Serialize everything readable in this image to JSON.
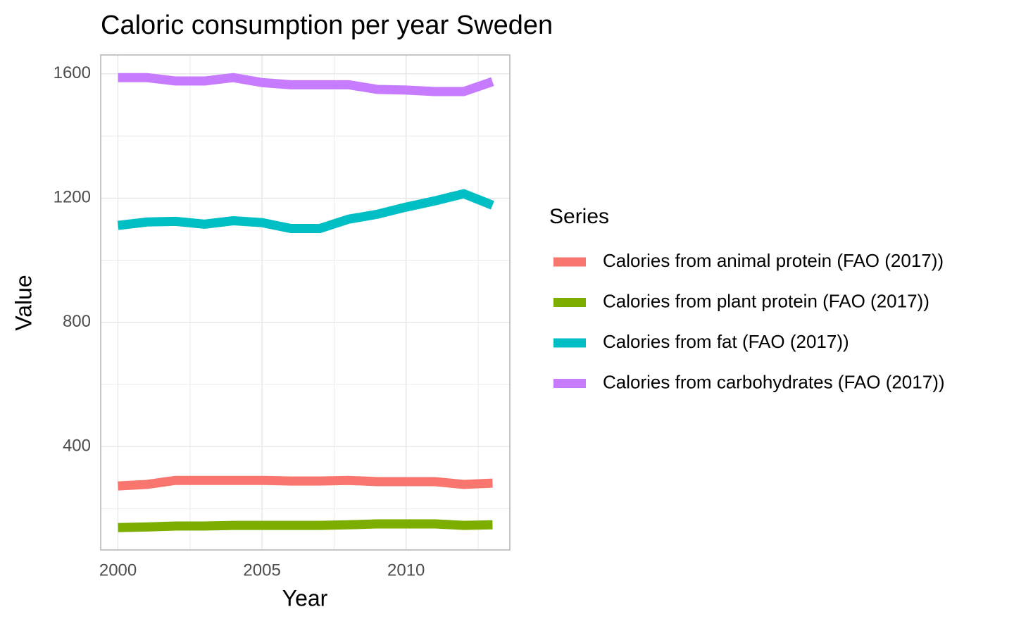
{
  "chart_data": {
    "type": "line",
    "title": "Caloric consumption per year Sweden",
    "x_label": "Year",
    "y_label": "Value",
    "legend_title": "Series",
    "x": [
      2000,
      2001,
      2002,
      2003,
      2004,
      2005,
      2006,
      2007,
      2008,
      2009,
      2010,
      2011,
      2012,
      2013
    ],
    "series": [
      {
        "name": "Calories from animal protein (FAO (2017))",
        "color": "#f8766d",
        "values": [
          273,
          278,
          291,
          291,
          291,
          291,
          289,
          289,
          291,
          287,
          287,
          287,
          278,
          282
        ]
      },
      {
        "name": "Calories from plant protein (FAO (2017))",
        "color": "#7cae00",
        "values": [
          139,
          141,
          144,
          144,
          146,
          146,
          146,
          146,
          148,
          151,
          151,
          151,
          146,
          148
        ]
      },
      {
        "name": "Calories from fat (FAO (2017))",
        "color": "#00bfc4",
        "values": [
          1112,
          1123,
          1125,
          1116,
          1127,
          1121,
          1102,
          1102,
          1132,
          1148,
          1171,
          1191,
          1214,
          1177
        ]
      },
      {
        "name": "Calories from carbohydrates (FAO (2017))",
        "color": "#c77cff",
        "values": [
          1588,
          1588,
          1577,
          1577,
          1588,
          1572,
          1565,
          1565,
          1565,
          1550,
          1548,
          1543,
          1543,
          1575
        ]
      }
    ],
    "xlim": [
      1999.4,
      2013.6
    ],
    "xticks": [
      2000,
      2005,
      2010
    ],
    "ylim": [
      67,
      1661
    ],
    "yticks": [
      400,
      800,
      1200,
      1600
    ],
    "grid": true,
    "minor_grid": true,
    "legend": "right"
  }
}
